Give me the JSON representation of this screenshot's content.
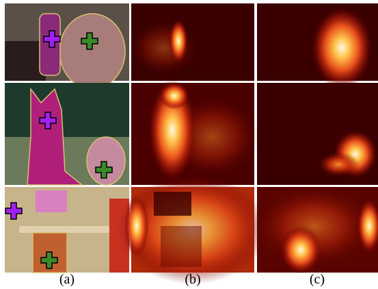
{
  "figure": {
    "columns": [
      {
        "label": "(a)"
      },
      {
        "label": "(b)"
      },
      {
        "label": "(c)"
      }
    ]
  }
}
